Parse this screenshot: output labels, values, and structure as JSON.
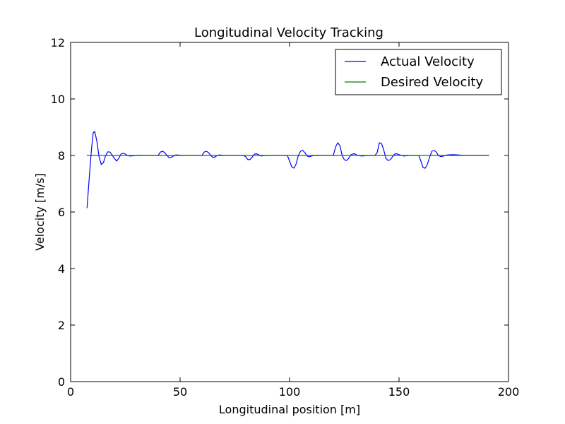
{
  "chart_data": {
    "type": "line",
    "title": "Longitudinal Velocity Tracking",
    "xlabel": "Longitudinal position [m]",
    "ylabel": "Velocity [m/s]",
    "xlim": [
      0,
      200
    ],
    "ylim": [
      0,
      12
    ],
    "xticks": [
      0,
      50,
      100,
      150,
      200
    ],
    "yticks": [
      0,
      2,
      4,
      6,
      8,
      10,
      12
    ],
    "xtick_labels": [
      "0",
      "50",
      "100",
      "150",
      "200"
    ],
    "ytick_labels": [
      "0",
      "2",
      "4",
      "6",
      "8",
      "10",
      "12"
    ],
    "grid": false,
    "legend_position": "top-right",
    "series": [
      {
        "name": "Actual Velocity",
        "color": "#0000ff",
        "x": [
          7.5,
          8.5,
          9.5,
          10.3,
          11.0,
          12.0,
          13.0,
          14.0,
          15.0,
          16.0,
          17.0,
          18.0,
          19.5,
          21.0,
          22.0,
          23.0,
          24.0,
          25.0,
          26.0,
          27.0,
          29.0,
          31.0,
          33.0,
          35.0,
          38.0,
          40.0,
          41.0,
          42.0,
          43.0,
          44.0,
          45.0,
          46.0,
          47.0,
          48.0,
          50.0,
          52.0,
          55.0,
          58.0,
          60.0,
          61.0,
          62.0,
          63.0,
          64.0,
          65.0,
          66.0,
          67.0,
          68.0,
          70.0,
          73.0,
          76.0,
          79.0,
          80.0,
          81.0,
          82.0,
          83.0,
          84.0,
          85.0,
          86.0,
          87.0,
          88.0,
          90.0,
          93.0,
          96.0,
          99.0,
          100.0,
          101.0,
          102.0,
          103.0,
          104.0,
          105.0,
          106.0,
          107.0,
          108.0,
          109.0,
          110.0,
          112.0,
          115.0,
          118.0,
          120.0,
          121.0,
          122.0,
          123.0,
          124.0,
          125.0,
          126.0,
          127.0,
          128.0,
          129.0,
          130.0,
          131.0,
          133.0,
          136.0,
          139.0,
          140.0,
          141.0,
          142.0,
          143.0,
          144.0,
          145.0,
          146.0,
          147.0,
          148.0,
          149.0,
          150.0,
          152.0,
          155.0,
          159.0,
          160.0,
          161.0,
          162.0,
          163.0,
          164.0,
          165.0,
          166.0,
          167.0,
          168.0,
          169.0,
          170.0,
          172.0,
          175.0,
          180.0,
          185.0,
          191.0
        ],
        "y": [
          6.15,
          7.2,
          8.2,
          8.8,
          8.85,
          8.5,
          7.95,
          7.68,
          7.75,
          8.0,
          8.13,
          8.12,
          7.95,
          7.8,
          7.9,
          8.05,
          8.08,
          8.05,
          8.0,
          7.98,
          7.99,
          8.01,
          8.0,
          8.0,
          8.0,
          8.0,
          8.12,
          8.15,
          8.1,
          8.0,
          7.92,
          7.93,
          7.98,
          8.02,
          8.01,
          8.0,
          8.0,
          8.0,
          8.0,
          8.12,
          8.15,
          8.1,
          8.0,
          7.93,
          7.95,
          8.0,
          8.02,
          8.0,
          8.0,
          8.0,
          8.0,
          7.95,
          7.85,
          7.86,
          7.95,
          8.05,
          8.06,
          8.02,
          7.98,
          7.99,
          8.0,
          8.0,
          8.0,
          8.0,
          7.8,
          7.6,
          7.55,
          7.7,
          8.0,
          8.15,
          8.18,
          8.1,
          7.98,
          7.95,
          7.98,
          8.01,
          8.0,
          8.0,
          8.0,
          8.3,
          8.45,
          8.35,
          8.0,
          7.85,
          7.82,
          7.9,
          8.02,
          8.06,
          8.05,
          8.0,
          7.98,
          8.0,
          8.0,
          8.1,
          8.45,
          8.42,
          8.2,
          7.9,
          7.82,
          7.85,
          7.95,
          8.05,
          8.06,
          8.03,
          7.98,
          8.0,
          8.0,
          7.8,
          7.57,
          7.55,
          7.7,
          7.95,
          8.15,
          8.18,
          8.12,
          8.0,
          7.96,
          7.97,
          8.02,
          8.03,
          8.0,
          8.0,
          8.0
        ]
      },
      {
        "name": "Desired Velocity",
        "color": "#008000",
        "x": [
          7.5,
          191.0
        ],
        "y": [
          8.0,
          8.0
        ]
      }
    ]
  }
}
